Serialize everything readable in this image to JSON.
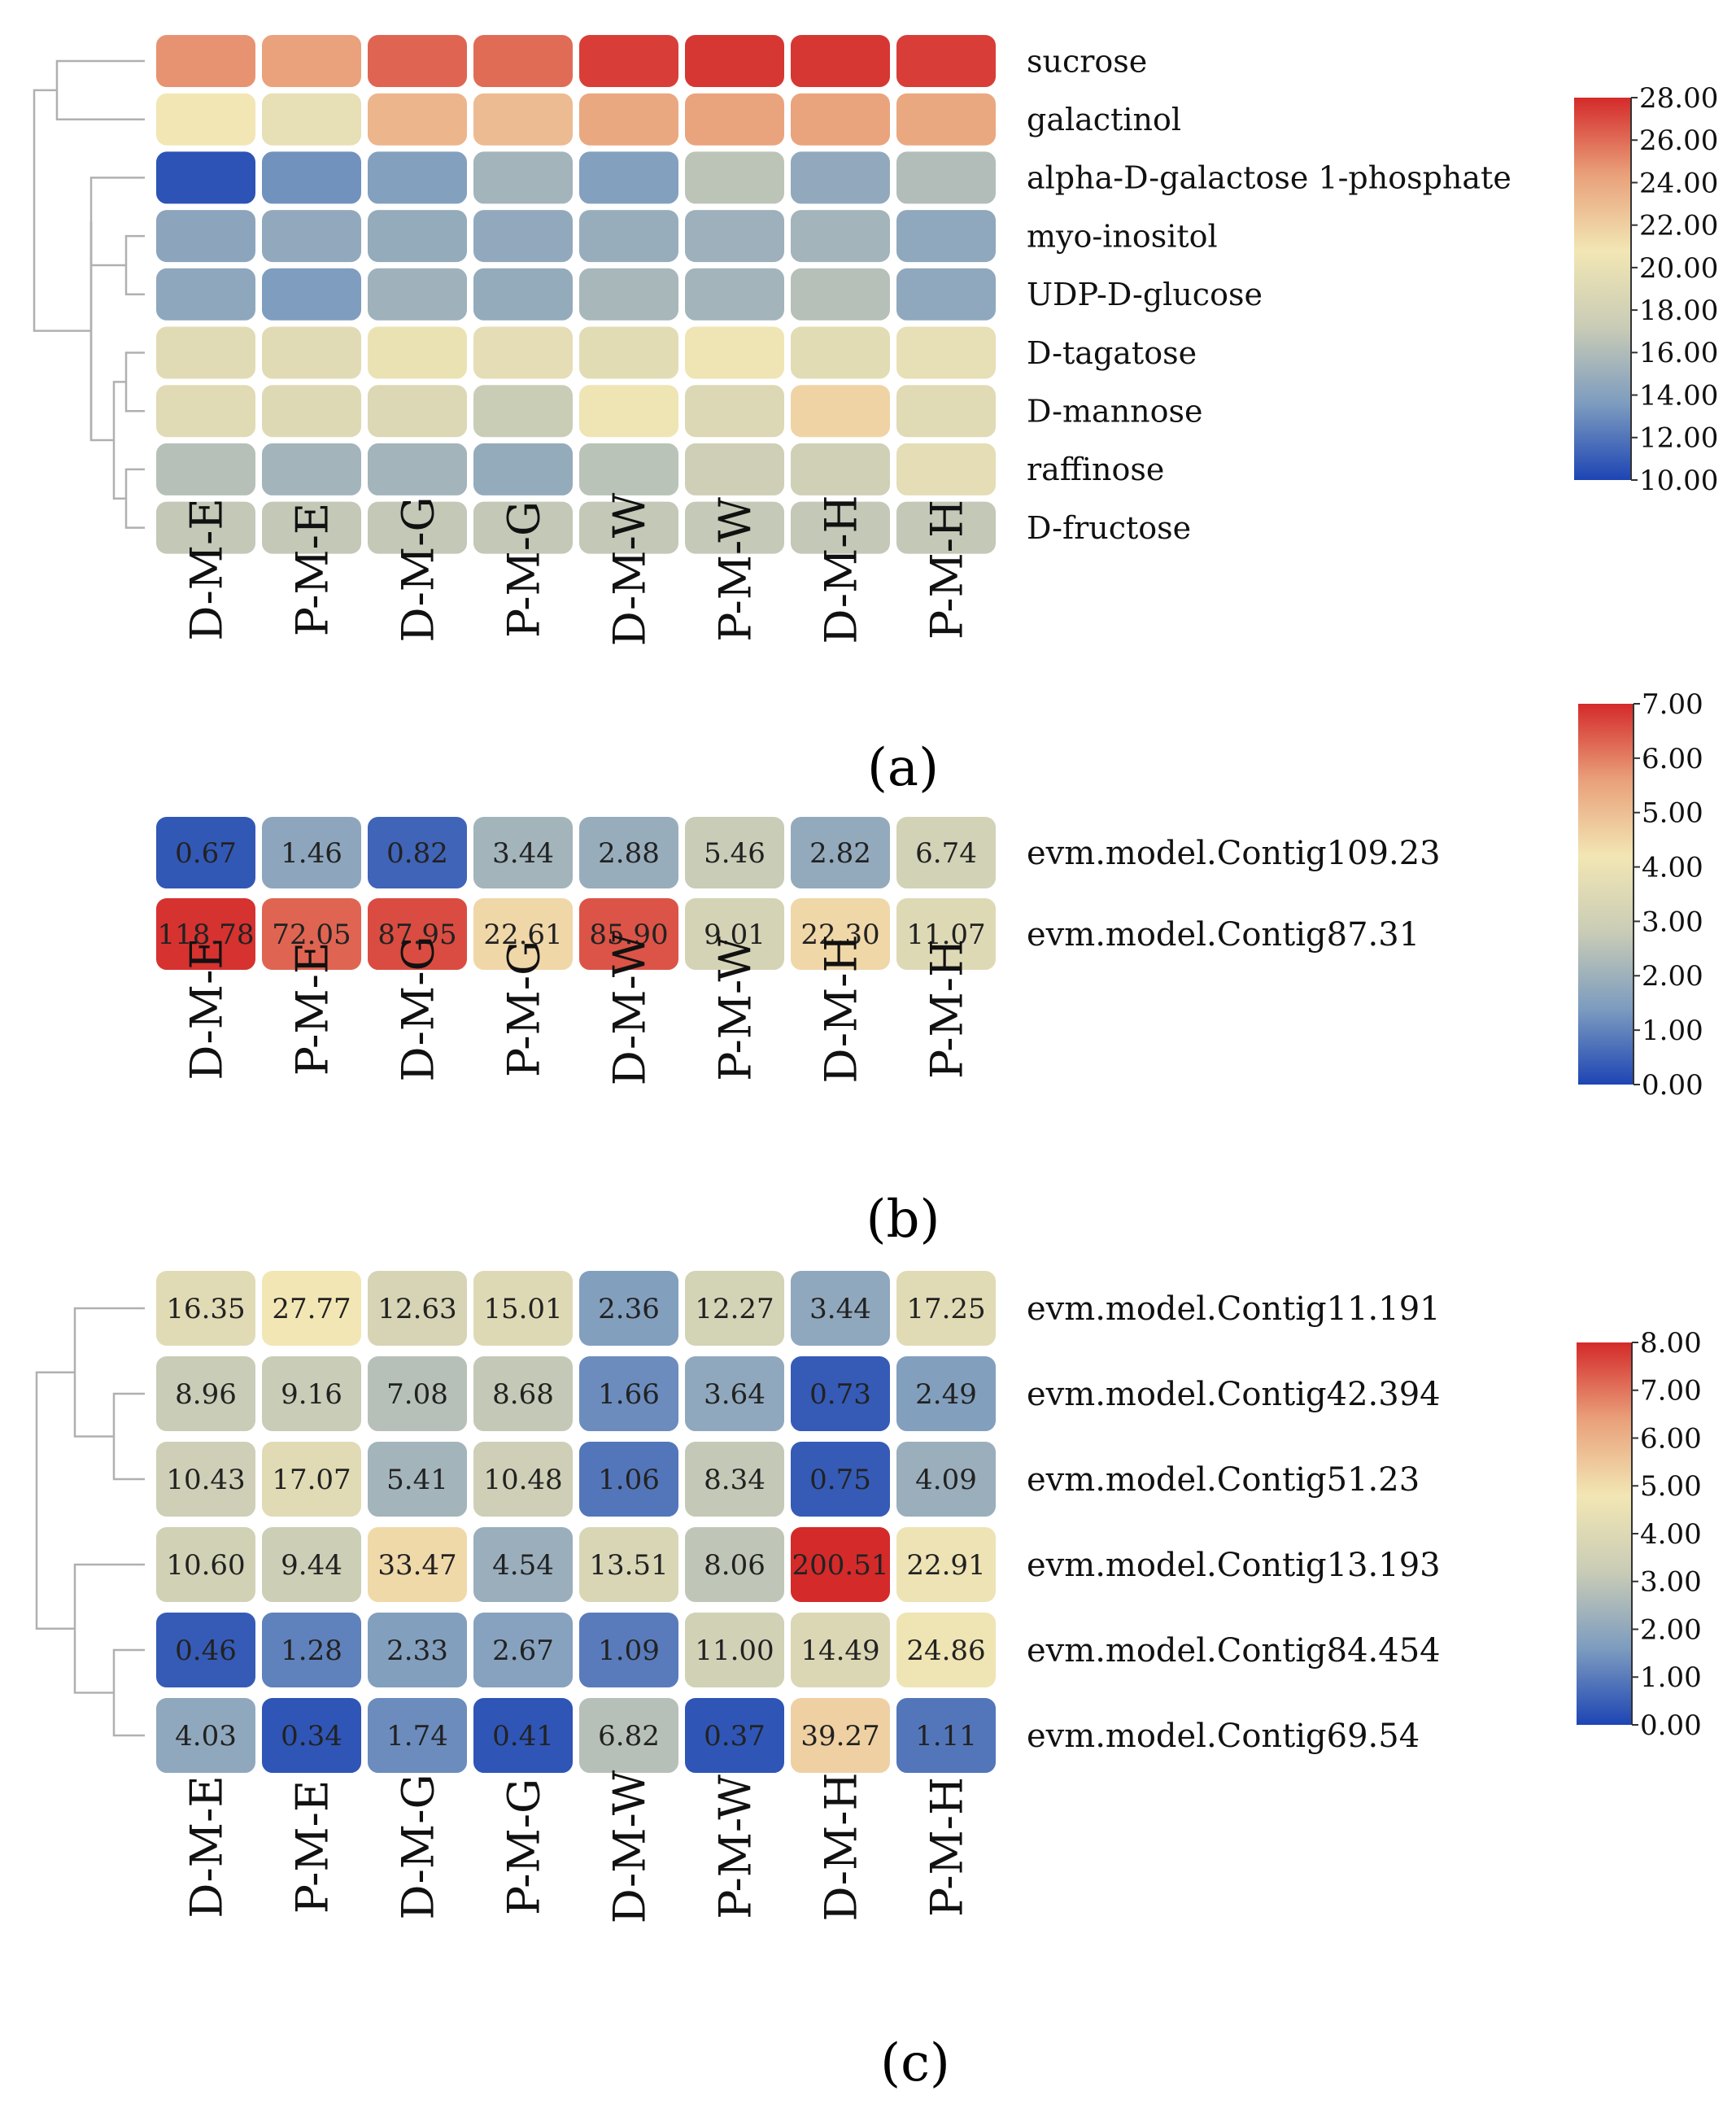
{
  "colors": {
    "low": "#1d45b4",
    "mid": "#f2e6b4",
    "high": "#d42a2a",
    "stops": [
      "#1d45b4",
      "#7d9cbf",
      "#c9ccb6",
      "#f2e6b4",
      "#e9a07a",
      "#d42a2a"
    ],
    "dendrogram": "#b0b0b0",
    "cell_border": "#ffffff"
  },
  "chart_data": [
    {
      "type": "heatmap",
      "panel_label": "(a)",
      "categories": [
        "D-M-E",
        "P-M-E",
        "D-M-G",
        "P-M-G",
        "D-M-W",
        "P-M-W",
        "D-M-H",
        "P-M-H"
      ],
      "rows": [
        "sucrose",
        "galactinol",
        "alpha-D-galactose 1-phosphate",
        "myo-inositol",
        "UDP-D-glucose",
        "D-tagatose",
        "D-mannose",
        "raffinose",
        "D-fructose"
      ],
      "values": [
        [
          24.8,
          24.3,
          26.2,
          26.0,
          27.4,
          27.6,
          27.6,
          27.4
        ],
        [
          20.8,
          19.8,
          23.3,
          23.0,
          24.0,
          24.2,
          24.2,
          24.0
        ],
        [
          10.6,
          13.2,
          13.9,
          15.4,
          13.9,
          16.6,
          14.6,
          16.1
        ],
        [
          14.3,
          14.6,
          14.7,
          14.6,
          14.9,
          15.1,
          15.4,
          14.5
        ],
        [
          14.4,
          13.7,
          15.2,
          14.7,
          15.6,
          15.4,
          16.3,
          14.5
        ],
        [
          19.3,
          19.3,
          20.2,
          19.6,
          19.4,
          20.5,
          19.4,
          19.8
        ],
        [
          19.2,
          19.0,
          18.9,
          17.3,
          20.5,
          18.9,
          21.8,
          19.2
        ],
        [
          16.3,
          15.4,
          15.4,
          14.7,
          16.5,
          17.6,
          17.7,
          19.6
        ],
        [
          16.9,
          16.9,
          16.9,
          16.9,
          16.9,
          17.0,
          16.9,
          16.9
        ]
      ],
      "value_labels": null,
      "colorbar": {
        "min": 10,
        "max": 28,
        "ticks": [
          "28.00",
          "26.00",
          "24.00",
          "22.00",
          "20.00",
          "18.00",
          "16.00",
          "14.00",
          "12.00",
          "10.00"
        ]
      },
      "dendrogram": "rows"
    },
    {
      "type": "heatmap",
      "panel_label": "(b)",
      "categories": [
        "D-M-E",
        "P-M-E",
        "D-M-G",
        "P-M-G",
        "D-M-W",
        "P-M-W",
        "D-M-H",
        "P-M-H"
      ],
      "rows": [
        "evm.model.Contig109.23",
        "evm.model.Contig87.31"
      ],
      "values": [
        [
          0.67,
          1.46,
          0.82,
          3.44,
          2.88,
          5.46,
          2.82,
          6.74
        ],
        [
          118.78,
          72.05,
          87.95,
          22.61,
          85.9,
          9.01,
          22.3,
          11.07
        ]
      ],
      "value_labels": [
        [
          "0.67",
          "1.46",
          "0.82",
          "3.44",
          "2.88",
          "5.46",
          "2.82",
          "6.74"
        ],
        [
          "118.78",
          "72.05",
          "87.95",
          "22.61",
          "85.90",
          "9.01",
          "22.30",
          "11.07"
        ]
      ],
      "color_values": [
        [
          0.3,
          1.7,
          0.5,
          2.1,
          1.9,
          2.8,
          1.8,
          3.1
        ],
        [
          6.9,
          6.3,
          6.6,
          4.5,
          6.5,
          3.2,
          4.5,
          3.5
        ]
      ],
      "colorbar": {
        "min": 0,
        "max": 7,
        "ticks": [
          "7.00",
          "6.00",
          "5.00",
          "4.00",
          "3.00",
          "2.00",
          "1.00",
          "0.00"
        ]
      },
      "dendrogram": "none"
    },
    {
      "type": "heatmap",
      "panel_label": "(c)",
      "categories": [
        "D-M-E",
        "P-M-E",
        "D-M-G",
        "P-M-G",
        "D-M-W",
        "P-M-W",
        "D-M-H",
        "P-M-H"
      ],
      "rows": [
        "evm.model.Contig11.191",
        "evm.model.Contig42.394",
        "evm.model.Contig51.23",
        "evm.model.Contig13.193",
        "evm.model.Contig84.454",
        "evm.model.Contig69.54"
      ],
      "values": [
        [
          16.35,
          27.77,
          12.63,
          15.01,
          2.36,
          12.27,
          3.44,
          17.25
        ],
        [
          8.96,
          9.16,
          7.08,
          8.68,
          1.66,
          3.64,
          0.73,
          2.49
        ],
        [
          10.43,
          17.07,
          5.41,
          10.48,
          1.06,
          8.34,
          0.75,
          4.09
        ],
        [
          10.6,
          9.44,
          33.47,
          4.54,
          13.51,
          8.06,
          200.51,
          22.91
        ],
        [
          0.46,
          1.28,
          2.33,
          2.67,
          1.09,
          11.0,
          14.49,
          24.86
        ],
        [
          4.03,
          0.34,
          1.74,
          0.41,
          6.82,
          0.37,
          39.27,
          1.11
        ]
      ],
      "value_labels": [
        [
          "16.35",
          "27.77",
          "12.63",
          "15.01",
          "2.36",
          "12.27",
          "3.44",
          "17.25"
        ],
        [
          "8.96",
          "9.16",
          "7.08",
          "8.68",
          "1.66",
          "3.64",
          "0.73",
          "2.49"
        ],
        [
          "10.43",
          "17.07",
          "5.41",
          "10.48",
          "1.06",
          "8.34",
          "0.75",
          "4.09"
        ],
        [
          "10.60",
          "9.44",
          "33.47",
          "4.54",
          "13.51",
          "8.06",
          "200.51",
          "22.91"
        ],
        [
          "0.46",
          "1.28",
          "2.33",
          "2.67",
          "1.09",
          "11.00",
          "14.49",
          "24.86"
        ],
        [
          "4.03",
          "0.34",
          "1.74",
          "0.41",
          "6.82",
          "0.37",
          "39.27",
          "1.11"
        ]
      ],
      "color_values": [
        [
          4.1,
          4.8,
          3.7,
          4.0,
          1.7,
          3.6,
          2.0,
          4.1
        ],
        [
          3.2,
          3.2,
          2.8,
          3.1,
          1.3,
          2.0,
          0.4,
          1.7
        ],
        [
          3.4,
          4.1,
          2.4,
          3.4,
          0.9,
          3.1,
          0.4,
          2.2
        ],
        [
          3.5,
          3.3,
          5.1,
          2.2,
          3.8,
          3.0,
          8.0,
          4.6
        ],
        [
          0.4,
          1.1,
          1.7,
          1.8,
          1.0,
          3.5,
          3.9,
          4.7
        ],
        [
          2.0,
          0.3,
          1.3,
          0.3,
          2.8,
          0.3,
          5.3,
          0.9
        ]
      ],
      "colorbar": {
        "min": 0,
        "max": 8,
        "ticks": [
          "8.00",
          "7.00",
          "6.00",
          "5.00",
          "4.00",
          "3.00",
          "2.00",
          "1.00",
          "0.00"
        ]
      },
      "dendrogram": "rows"
    }
  ]
}
